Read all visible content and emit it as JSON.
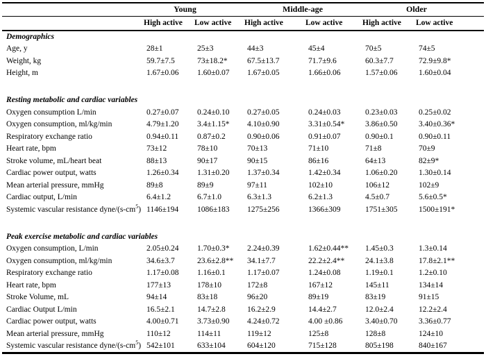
{
  "table": {
    "groups": [
      {
        "label": "Young"
      },
      {
        "label": "Middle-age"
      },
      {
        "label": "Older"
      }
    ],
    "subheaders": [
      "High active",
      "Low active",
      "High active",
      "Low active",
      "High active",
      "Low active"
    ],
    "sections": [
      {
        "title": "Demographics",
        "rows": [
          {
            "label": "Age, y",
            "values": [
              "28±1",
              "25±3",
              "44±3",
              "45±4",
              "70±5",
              "74±5"
            ]
          },
          {
            "label": "Weight, kg",
            "values": [
              "59.7±7.5",
              "73±18.2*",
              "67.5±13.7",
              "71.7±9.6",
              "60.3±7.7",
              "72.9±9.8*"
            ]
          },
          {
            "label": "Height, m",
            "values": [
              "1.67±0.06",
              "1.60±0.07",
              "1.67±0.05",
              "1.66±0.06",
              "1.57±0.06",
              "1.60±0.04"
            ]
          }
        ]
      },
      {
        "title": "Resting metabolic and cardiac variables",
        "rows": [
          {
            "label": "Oxygen consumption L/min",
            "values": [
              "0.27±0.07",
              "0.24±0.10",
              "0.27±0.05",
              "0.24±0.03",
              "0.23±0.03",
              "0.25±0.02"
            ]
          },
          {
            "label": "Oxygen consumption, ml/kg/min",
            "values": [
              "4.79±1.20",
              "3.4±1.15*",
              "4.10±0.90",
              "3.31±0.54*",
              "3.86±0.50",
              "3.40±0.36*"
            ]
          },
          {
            "label": "Respiratory exchange ratio",
            "values": [
              "0.94±0.11",
              "0.87±0.2",
              "0.90±0.06",
              "0.91±0.07",
              "0.90±0.1",
              "0.90±0.11"
            ]
          },
          {
            "label": "Heart rate, bpm",
            "values": [
              "73±12",
              "78±10",
              "70±13",
              "71±10",
              "71±8",
              "70±9"
            ]
          },
          {
            "label": "Stroke volume, mL/heart beat",
            "values": [
              "88±13",
              "90±17",
              "90±15",
              "86±16",
              "64±13",
              "82±9*"
            ]
          },
          {
            "label": "Cardiac power output, watts",
            "values": [
              "1.26±0.34",
              "1.31±0.20",
              "1.37±0.34",
              "1.42±0.34",
              "1.06±0.20",
              "1.30±0.14"
            ]
          },
          {
            "label": "Mean arterial pressure, mmHg",
            "values": [
              "89±8",
              "89±9",
              "97±11",
              "102±10",
              "106±12",
              "102±9"
            ]
          },
          {
            "label": "Cardiac output, L/min",
            "values": [
              "6.4±1.2",
              "6.7±1.0",
              "6.3±1.3",
              "6.2±1.3",
              "4.5±0.7",
              "5.6±0.5*"
            ]
          },
          {
            "label": "Systemic vascular resistance dyne/(s-cm",
            "sup": "5",
            "tail": ")",
            "values": [
              "1146±194",
              "1086±183",
              "1275±256",
              "1366±309",
              "1751±305",
              "1500±191*"
            ]
          }
        ]
      },
      {
        "title": "Peak exercise metabolic and cardiac variables",
        "rows": [
          {
            "label": "Oxygen consumption, L/min",
            "values": [
              "2.05±0.24",
              "1.70±0.3*",
              "2.24±0.39",
              "1.62±0.44**",
              "1.45±0.3",
              "1.3±0.14"
            ]
          },
          {
            "label": "Oxygen consumption, ml/kg/min",
            "values": [
              "34.6±3.7",
              "23.6±2.8**",
              "34.1±7.7",
              "22.2±2.4**",
              "24.1±3.8",
              "17.8±2.1**"
            ]
          },
          {
            "label": "Respiratory exchange ratio",
            "values": [
              "1.17±0.08",
              "1.16±0.1",
              "1.17±0.07",
              "1.24±0.08",
              "1.19±0.1",
              "1.2±0.10"
            ]
          },
          {
            "label": "Heart rate, bpm",
            "values": [
              "177±13",
              "178±10",
              "172±8",
              "167±12",
              "145±11",
              "134±14"
            ]
          },
          {
            "label": "Stroke Volume, mL",
            "values": [
              "94±14",
              "83±18",
              "96±20",
              "89±19",
              "83±19",
              "91±15"
            ]
          },
          {
            "label": "Cardiac Output L/min",
            "values": [
              "16.5±2.1",
              "14.7±2.8",
              "16.2±2.9",
              "14.4±2.7",
              "12.0±2.4",
              "12.2±2.4"
            ]
          },
          {
            "label": "Cardiac power output, watts",
            "values": [
              "4.00±0.71",
              "3.73±0.90",
              "4.24±0.72",
              "4.00 ±0.86",
              "3.40±0.70",
              "3.36±0.77"
            ]
          },
          {
            "label": "Mean arterial pressure, mmHg",
            "values": [
              "110±12",
              "114±11",
              "119±12",
              "125±8",
              "128±8",
              "124±10"
            ]
          },
          {
            "label": "Systemic vascular resistance dyne/(s-cm",
            "sup": "5",
            "tail": ")",
            "values": [
              "542±101",
              "633±104",
              "604±120",
              "715±128",
              "805±198",
              "840±167"
            ]
          }
        ]
      }
    ]
  }
}
